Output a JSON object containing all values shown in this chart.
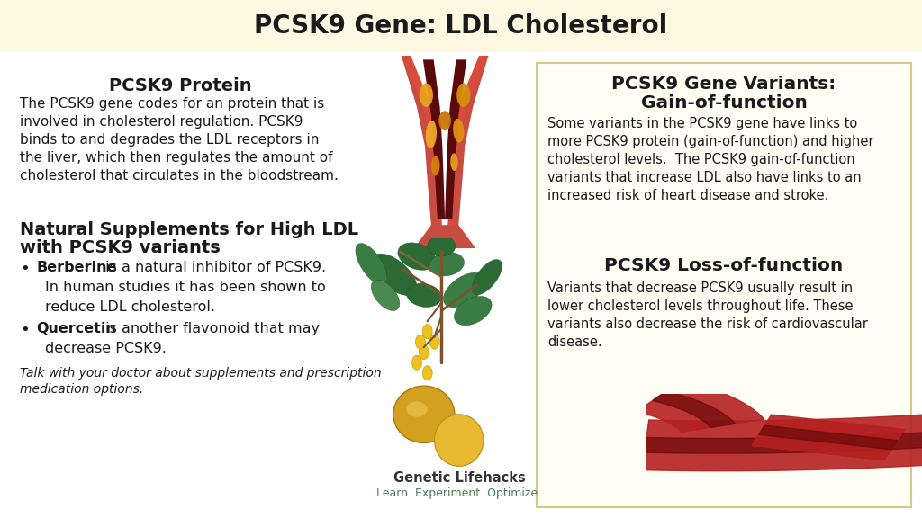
{
  "title": "PCSK9 Gene: LDL Cholesterol",
  "title_fontsize": 20,
  "title_bg_color": "#fdf8e1",
  "main_bg_color": "#ffffff",
  "right_box_bg": "#fffef5",
  "right_box_border": "#d4c88a",
  "protein_header": "PCSK9 Protein",
  "protein_lines": [
    "The PCSK9 gene codes for an protein that is",
    "involved in cholesterol regulation. PCSK9",
    "binds to and degrades the LDL receptors in",
    "the liver, which then regulates the amount of",
    "cholesterol that circulates in the bloodstream."
  ],
  "supplements_header_line1": "Natural Supplements for High LDL",
  "supplements_header_line2": "with PCSK9 variants",
  "bullet1_bold": "Berberine",
  "bullet1_rest": " is a natural inhibitor of PCSK9.",
  "bullet1_cont1": "In human studies it has been shown to",
  "bullet1_cont2": "reduce LDL cholesterol.",
  "bullet2_bold": "Quercetin",
  "bullet2_rest": " is another flavonoid that may",
  "bullet2_cont": "decrease PCSK9.",
  "footer_line1": "Talk with your doctor about supplements and prescription",
  "footer_line2": "medication options.",
  "gof_header_line1": "PCSK9 Gene Variants:",
  "gof_header_line2": "Gain-of-function",
  "gof_lines": [
    "Some variants in the PCSK9 gene have links to",
    "more PCSK9 protein (gain-of-function) and higher",
    "cholesterol levels.  The PCSK9 gain-of-function",
    "variants that increase LDL also have links to an",
    "increased risk of heart disease and stroke."
  ],
  "lof_header": "PCSK9 Loss-of-function",
  "lof_lines": [
    "Variants that decrease PCSK9 usually result in",
    "lower cholesterol levels throughout life. These",
    "variants also decrease the risk of cardiovascular",
    "disease."
  ],
  "brand_name": "Genetic Lifehacks",
  "brand_tagline": "Learn. Experiment. Optimize.",
  "brand_color": "#4a7c59",
  "text_color": "#1a1a1a"
}
